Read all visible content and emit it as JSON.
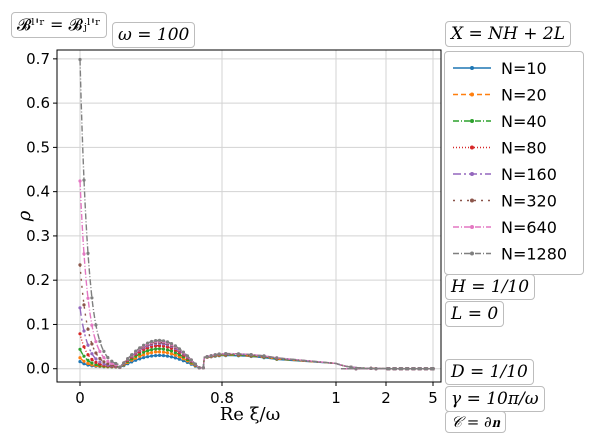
{
  "annotations": {
    "top_left": "𝓑ˡ'ʳ = 𝓑ⱼˡ'ʳ",
    "omega": "ω = 100",
    "x_formula": "X = NH + 2L",
    "H": "H = 1/10",
    "L": "L = 0",
    "D": "D = 1/10",
    "gamma": "γ = 10π/ω",
    "C": "𝒞 = ∂𝐧"
  },
  "chart_data": {
    "type": "line",
    "xlabel": "Re ξ/ω",
    "ylabel": "ρ",
    "ylim": [
      0,
      0.72
    ],
    "yticks": [
      0.0,
      0.1,
      0.2,
      0.3,
      0.4,
      0.5,
      0.6,
      0.7
    ],
    "ytick_labels": [
      "0.0",
      "0.1",
      "0.2",
      "0.3",
      "0.4",
      "0.5",
      "0.6",
      "0.7"
    ],
    "x_axis_note": "piecewise scale: linear from 0 to 0.8, compressed beyond",
    "xticks": [
      0,
      0.8,
      1,
      2,
      5
    ],
    "xtick_labels": [
      "0",
      "0.8",
      "1",
      "2",
      "5"
    ],
    "grid": true,
    "legend_position": "right",
    "series": [
      {
        "name": "N=10",
        "color": "#1f77b4",
        "dash": "solid",
        "peak0": 0.016,
        "mid": 0.028,
        "bump2": 0.028
      },
      {
        "name": "N=20",
        "color": "#ff7f0e",
        "dash": "dashed",
        "peak0": 0.025,
        "mid": 0.036,
        "bump2": 0.029
      },
      {
        "name": "N=40",
        "color": "#2ca02c",
        "dash": "dashdot",
        "peak0": 0.044,
        "mid": 0.043,
        "bump2": 0.03
      },
      {
        "name": "N=80",
        "color": "#d62728",
        "dash": "dotted",
        "peak0": 0.079,
        "mid": 0.05,
        "bump2": 0.031
      },
      {
        "name": "N=160",
        "color": "#9467bd",
        "dash": "longdash",
        "peak0": 0.138,
        "mid": 0.055,
        "bump2": 0.032
      },
      {
        "name": "N=320",
        "color": "#8c564b",
        "dash": "sparse",
        "peak0": 0.235,
        "mid": 0.058,
        "bump2": 0.032
      },
      {
        "name": "N=640",
        "color": "#e377c2",
        "dash": "dashdot",
        "peak0": 0.425,
        "mid": 0.06,
        "bump2": 0.033
      },
      {
        "name": "N=1280",
        "color": "#7f7f7f",
        "dash": "dashdot",
        "peak0": 0.7,
        "mid": 0.062,
        "bump2": 0.033
      }
    ]
  }
}
